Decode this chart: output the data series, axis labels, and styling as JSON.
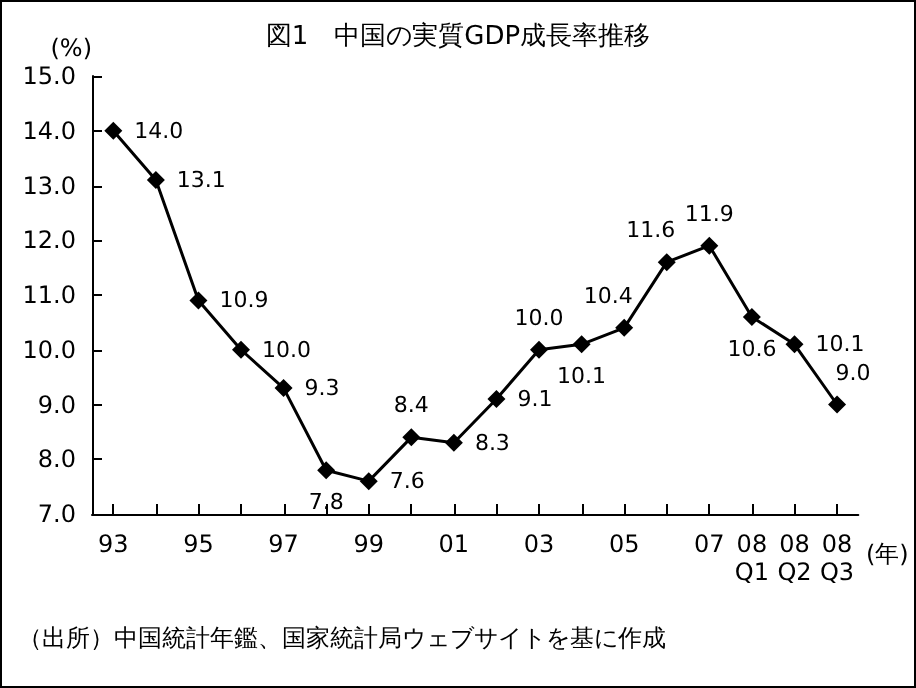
{
  "chart_data": {
    "type": "line",
    "title": "図1　中国の実質GDP成長率推移",
    "ylabel": "(%)",
    "xlabel": "(年)",
    "categories": [
      "93",
      null,
      "95",
      null,
      "97",
      null,
      "99",
      null,
      "01",
      null,
      "03",
      null,
      "05",
      null,
      "07",
      "08\nQ1",
      "08\nQ2",
      "08\nQ3"
    ],
    "series": [
      {
        "color": "#000000",
        "values": [
          14.0,
          13.1,
          10.9,
          10.0,
          9.3,
          7.8,
          7.6,
          8.4,
          8.3,
          9.1,
          10.0,
          10.1,
          10.4,
          11.6,
          11.9,
          10.6,
          10.1,
          9.0
        ],
        "value_labels": [
          "14.0",
          "13.1",
          "10.9",
          "10.0",
          "9.3",
          "7.8",
          "7.6",
          "8.4",
          "8.3",
          "9.1",
          "10.0",
          "10.1",
          "10.4",
          "11.6",
          "11.9",
          "10.6",
          "10.1",
          "9.0"
        ]
      }
    ],
    "ylim": [
      7,
      15
    ],
    "yticks": [
      {
        "value": 7,
        "label": "7.0"
      },
      {
        "value": 8,
        "label": "8.0"
      },
      {
        "value": 9,
        "label": "9.0"
      },
      {
        "value": 10,
        "label": "10.0"
      },
      {
        "value": 11,
        "label": "11.0"
      },
      {
        "value": 12,
        "label": "12.0"
      },
      {
        "value": 13,
        "label": "13.0"
      },
      {
        "value": 14,
        "label": "14.0"
      },
      {
        "value": 15,
        "label": "15.0"
      }
    ],
    "grid": false,
    "marker": "diamond",
    "line_style": "solid",
    "annotations": [
      "（出所）中国統計年鑑、国家統計局ウェブサイトを基に作成"
    ]
  }
}
